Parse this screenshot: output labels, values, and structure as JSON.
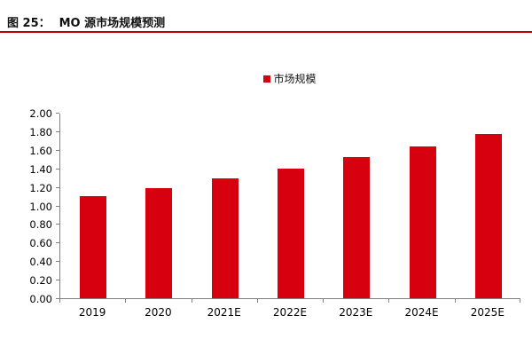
{
  "header": {
    "title_prefix": "图 25：",
    "title": "MO 源市场规模预测"
  },
  "legend": {
    "label": "市场规模"
  },
  "colors": {
    "bar": "#d7000f",
    "title_underline": "#c00000",
    "axis": "#808080",
    "text": "#000000"
  },
  "chart_data": {
    "type": "bar",
    "title": "MO 源市场规模预测",
    "legend_entries": [
      "市场规模"
    ],
    "legend_position": "top-center",
    "categories": [
      "2019",
      "2020",
      "2021E",
      "2022E",
      "2023E",
      "2024E",
      "2025E"
    ],
    "series": [
      {
        "name": "市场规模",
        "values": [
          1.1,
          1.19,
          1.29,
          1.4,
          1.52,
          1.64,
          1.77
        ]
      }
    ],
    "xlabel": "",
    "ylabel": "",
    "ylim": [
      0.0,
      2.0
    ],
    "ytick_step": 0.2,
    "ytick_labels": [
      "0.00",
      "0.20",
      "0.40",
      "0.60",
      "0.80",
      "1.00",
      "1.20",
      "1.40",
      "1.60",
      "1.80",
      "2.00"
    ],
    "grid": false
  }
}
